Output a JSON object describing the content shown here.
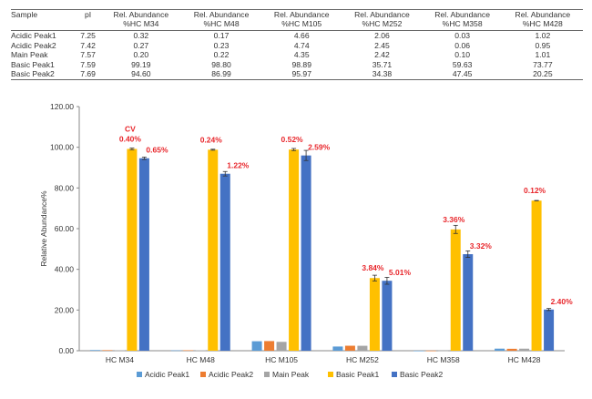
{
  "table": {
    "headers": [
      "Sample",
      "pI",
      "Rel. Abundance\n%HC M34",
      "Rel. Abundance\n%HC M48",
      "Rel. Abundance\n%HC M105",
      "Rel. Abundance\n%HC M252",
      "Rel. Abundance\n%HC M358",
      "Rel. Abundance\n%HC M428"
    ],
    "rows": [
      [
        "Acidic Peak1",
        "7.25",
        "0.32",
        "0.17",
        "4.66",
        "2.06",
        "0.03",
        "1.02"
      ],
      [
        "Acidic Peak2",
        "7.42",
        "0.27",
        "0.23",
        "4.74",
        "2.45",
        "0.06",
        "0.95"
      ],
      [
        "Main Peak",
        "7.57",
        "0.20",
        "0.22",
        "4.35",
        "2.42",
        "0.10",
        "1.01"
      ],
      [
        "Basic Peak1",
        "7.59",
        "99.19",
        "98.80",
        "98.89",
        "35.71",
        "59.63",
        "73.77"
      ],
      [
        "Basic Peak2",
        "7.69",
        "94.60",
        "86.99",
        "95.97",
        "34.38",
        "47.45",
        "20.25"
      ]
    ]
  },
  "chart_data": {
    "type": "bar",
    "title": "",
    "xlabel": "",
    "ylabel": "Relative Abundance%",
    "ylim": [
      0,
      120
    ],
    "yticks": [
      "0.00",
      "20.00",
      "40.00",
      "60.00",
      "80.00",
      "100.00",
      "120.00"
    ],
    "grid": false,
    "legend_position": "bottom",
    "categories": [
      "HC M34",
      "HC M48",
      "HC M105",
      "HC M252",
      "HC M358",
      "HC M428"
    ],
    "series": [
      {
        "name": "Acidic Peak1",
        "color": "#5b9bd5",
        "values": [
          0.32,
          0.17,
          4.66,
          2.06,
          0.03,
          1.02
        ]
      },
      {
        "name": "Acidic Peak2",
        "color": "#ed7d31",
        "values": [
          0.27,
          0.23,
          4.74,
          2.45,
          0.06,
          0.95
        ]
      },
      {
        "name": "Main Peak",
        "color": "#a5a5a5",
        "values": [
          0.2,
          0.22,
          4.35,
          2.42,
          0.1,
          1.01
        ]
      },
      {
        "name": "Basic Peak1",
        "color": "#ffc000",
        "values": [
          99.19,
          98.8,
          98.89,
          35.71,
          59.63,
          73.77
        ]
      },
      {
        "name": "Basic Peak2",
        "color": "#4472c4",
        "values": [
          94.6,
          86.99,
          95.97,
          34.38,
          47.45,
          20.25
        ]
      }
    ],
    "error_bars": {
      "Basic Peak1": [
        0.4,
        0.24,
        0.52,
        1.4,
        2.0,
        0.1
      ],
      "Basic Peak2": [
        0.6,
        1.1,
        2.5,
        1.7,
        1.6,
        0.5
      ]
    },
    "annotations": [
      {
        "text": "CV",
        "category": "HC M34",
        "series": "Basic Peak1"
      },
      {
        "text": "0.40%",
        "category": "HC M34",
        "series": "Basic Peak1"
      },
      {
        "text": "0.65%",
        "category": "HC M34",
        "series": "Basic Peak2"
      },
      {
        "text": "0.24%",
        "category": "HC M48",
        "series": "Basic Peak1"
      },
      {
        "text": "1.22%",
        "category": "HC M48",
        "series": "Basic Peak2"
      },
      {
        "text": "0.52%",
        "category": "HC M105",
        "series": "Basic Peak1"
      },
      {
        "text": "2.59%",
        "category": "HC M105",
        "series": "Basic Peak2"
      },
      {
        "text": "3.84%",
        "category": "HC M252",
        "series": "Basic Peak1"
      },
      {
        "text": "5.01%",
        "category": "HC M252",
        "series": "Basic Peak2"
      },
      {
        "text": "3.36%",
        "category": "HC M358",
        "series": "Basic Peak1"
      },
      {
        "text": "3.32%",
        "category": "HC M358",
        "series": "Basic Peak2"
      },
      {
        "text": "0.12%",
        "category": "HC M428",
        "series": "Basic Peak1"
      },
      {
        "text": "2.40%",
        "category": "HC M428",
        "series": "Basic Peak2"
      }
    ]
  }
}
